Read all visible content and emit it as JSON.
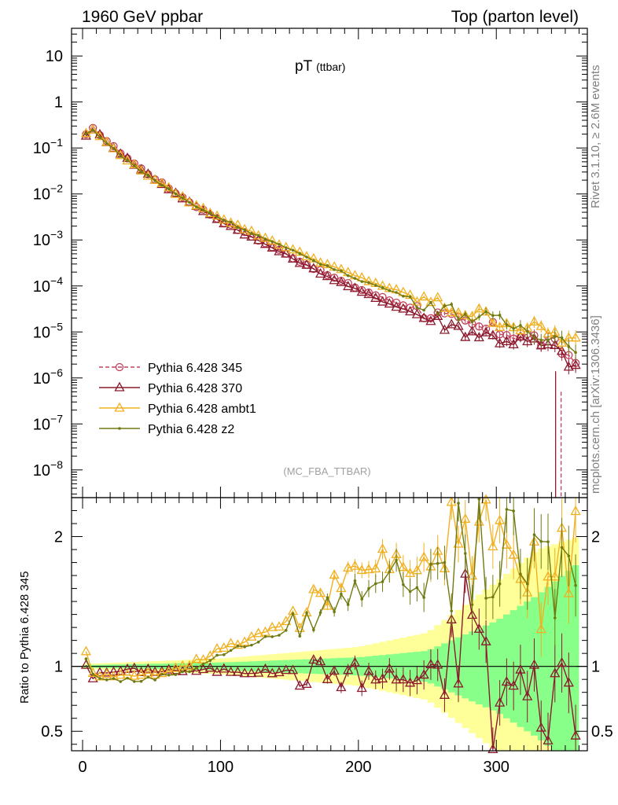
{
  "header": {
    "left": "1960 GeV ppbar",
    "right": "Top (parton level)"
  },
  "side": {
    "rivet": "Rivet 3.1.10, ≥ 2.6M events",
    "mcplots": "mcplots.cern.ch [arXiv:1306.3436]"
  },
  "chart_data": [
    {
      "type": "line",
      "title": "pT",
      "title_sub": "(ttbar)",
      "analysis_label": "(MC_FBA_TTBAR)",
      "y_scale": "log",
      "xlim": [
        -8,
        366
      ],
      "ylim": [
        2.5e-09,
        40
      ],
      "y_tick_labels": [
        {
          "v": 10,
          "text": "10"
        },
        {
          "v": 1,
          "text": "1"
        },
        {
          "v": 0.1,
          "base": "10",
          "exp": "−1"
        },
        {
          "v": 0.01,
          "base": "10",
          "exp": "−2"
        },
        {
          "v": 0.001,
          "base": "10",
          "exp": "−3"
        },
        {
          "v": 0.0001,
          "base": "10",
          "exp": "−4"
        },
        {
          "v": 1e-05,
          "base": "10",
          "exp": "−5"
        },
        {
          "v": 1e-06,
          "base": "10",
          "exp": "−6"
        },
        {
          "v": 1e-07,
          "base": "10",
          "exp": "−7"
        },
        {
          "v": 1e-08,
          "base": "10",
          "exp": "−8"
        }
      ],
      "legend_position": "bottom-left",
      "bin_width": 5,
      "x_start": 2.5,
      "series": [
        {
          "name": "Pythia 6.428 345",
          "color": "#c0405a",
          "marker": "circle",
          "line": "dashed",
          "control_points": [
            [
              2.5,
              0.19
            ],
            [
              7.5,
              0.26
            ],
            [
              12.5,
              0.2
            ],
            [
              20,
              0.12
            ],
            [
              40,
              0.04
            ],
            [
              60,
              0.015
            ],
            [
              80,
              0.006
            ],
            [
              100,
              0.0027
            ],
            [
              120,
              0.0013
            ],
            [
              140,
              0.00065
            ],
            [
              160,
              0.00032
            ],
            [
              180,
              0.00016
            ],
            [
              200,
              8.8e-05
            ],
            [
              220,
              5.2e-05
            ],
            [
              240,
              3.3e-05
            ],
            [
              260,
              2.1e-05
            ],
            [
              280,
              1.3e-05
            ],
            [
              300,
              1.1e-05
            ],
            [
              320,
              8.5e-06
            ],
            [
              340,
              5.5e-06
            ],
            [
              350,
              3.5e-06
            ],
            [
              360,
              2e-06
            ]
          ]
        },
        {
          "name": "Pythia 6.428 370",
          "color": "#8b1a2e",
          "marker": "triangle",
          "line": "solid",
          "control_points": [
            [
              2.5,
              0.19
            ],
            [
              7.5,
              0.24
            ],
            [
              12.5,
              0.19
            ],
            [
              20,
              0.118
            ],
            [
              40,
              0.038
            ],
            [
              60,
              0.0145
            ],
            [
              80,
              0.0058
            ],
            [
              100,
              0.0026
            ],
            [
              120,
              0.00125
            ],
            [
              140,
              0.00062
            ],
            [
              160,
              0.0003
            ],
            [
              180,
              0.000148
            ],
            [
              200,
              7.8e-05
            ],
            [
              220,
              4.4e-05
            ],
            [
              240,
              2.6e-05
            ],
            [
              260,
              1.6e-05
            ],
            [
              280,
              1.05e-05
            ],
            [
              300,
              7.5e-06
            ],
            [
              320,
              6.2e-06
            ],
            [
              340,
              4.5e-06
            ],
            [
              350,
              2.8e-06
            ],
            [
              360,
              1.5e-06
            ]
          ]
        },
        {
          "name": "Pythia 6.428 ambt1",
          "color": "#f0b020",
          "marker": "triangle",
          "line": "solid",
          "control_points": [
            [
              2.5,
              0.21
            ],
            [
              7.5,
              0.24
            ],
            [
              12.5,
              0.18
            ],
            [
              20,
              0.11
            ],
            [
              40,
              0.036
            ],
            [
              60,
              0.0145
            ],
            [
              80,
              0.006
            ],
            [
              100,
              0.0031
            ],
            [
              120,
              0.0016
            ],
            [
              140,
              0.00088
            ],
            [
              160,
              0.00048
            ],
            [
              180,
              0.00027
            ],
            [
              200,
              0.000155
            ],
            [
              220,
              9.5e-05
            ],
            [
              240,
              5.8e-05
            ],
            [
              260,
              3.8e-05
            ],
            [
              280,
              2.6e-05
            ],
            [
              300,
              1.9e-05
            ],
            [
              320,
              1.3e-05
            ],
            [
              340,
              9.5e-06
            ],
            [
              350,
              7e-06
            ],
            [
              360,
              5.5e-06
            ]
          ]
        },
        {
          "name": "Pythia 6.428 z2",
          "color": "#707a10",
          "marker": "dot",
          "line": "solid",
          "control_points": [
            [
              2.5,
              0.2
            ],
            [
              7.5,
              0.24
            ],
            [
              12.5,
              0.18
            ],
            [
              20,
              0.108
            ],
            [
              40,
              0.035
            ],
            [
              60,
              0.014
            ],
            [
              80,
              0.0058
            ],
            [
              100,
              0.003
            ],
            [
              120,
              0.00155
            ],
            [
              140,
              0.00084
            ],
            [
              160,
              0.00045
            ],
            [
              180,
              0.00025
            ],
            [
              200,
              0.00014
            ],
            [
              220,
              8.5e-05
            ],
            [
              240,
              5.2e-05
            ],
            [
              260,
              3.4e-05
            ],
            [
              280,
              2.3e-05
            ],
            [
              300,
              1.7e-05
            ],
            [
              320,
              1.2e-05
            ],
            [
              340,
              8.5e-06
            ],
            [
              350,
              6.5e-06
            ],
            [
              360,
              5e-06
            ]
          ]
        }
      ]
    },
    {
      "type": "line",
      "ylabel": "Ratio to Pythia 6.428 345",
      "xlim": [
        -8,
        366
      ],
      "ylim": [
        0.35,
        2.3
      ],
      "x_ticks": [
        0,
        100,
        200,
        300
      ],
      "y_ticks": [
        0.5,
        1,
        2
      ],
      "reference": 1,
      "band_inner": [
        [
          2.5,
          0.01
        ],
        [
          100,
          0.03
        ],
        [
          200,
          0.07
        ],
        [
          250,
          0.12
        ],
        [
          300,
          0.35
        ],
        [
          330,
          0.55
        ],
        [
          360,
          0.8
        ]
      ],
      "band_outer": [
        [
          2.5,
          0.02
        ],
        [
          100,
          0.06
        ],
        [
          200,
          0.15
        ],
        [
          250,
          0.26
        ],
        [
          300,
          0.65
        ],
        [
          330,
          0.9
        ],
        [
          360,
          1.0
        ]
      ],
      "series": [
        {
          "name": "Pythia 6.428 370",
          "color": "#8b1a2e",
          "control_points": [
            [
              2.5,
              1.02
            ],
            [
              7.5,
              0.92
            ],
            [
              20,
              0.96
            ],
            [
              40,
              0.97
            ],
            [
              60,
              0.97
            ],
            [
              80,
              0.97
            ],
            [
              100,
              0.97
            ],
            [
              120,
              0.96
            ],
            [
              140,
              0.96
            ],
            [
              160,
              0.95
            ],
            [
              180,
              0.96
            ],
            [
              200,
              0.93
            ],
            [
              220,
              0.92
            ],
            [
              240,
              0.9
            ],
            [
              260,
              0.93
            ],
            [
              270,
              1.2
            ],
            [
              280,
              1.45
            ],
            [
              285,
              1.6
            ],
            [
              290,
              1.0
            ],
            [
              300,
              0.6
            ],
            [
              310,
              0.9
            ],
            [
              320,
              0.8
            ],
            [
              330,
              0.7
            ],
            [
              340,
              0.9
            ],
            [
              350,
              0.8
            ],
            [
              360,
              0.75
            ]
          ]
        },
        {
          "name": "Pythia 6.428 ambt1",
          "color": "#f0b020",
          "control_points": [
            [
              2.5,
              1.12
            ],
            [
              7.5,
              0.95
            ],
            [
              20,
              0.92
            ],
            [
              40,
              0.92
            ],
            [
              60,
              0.97
            ],
            [
              80,
              1.03
            ],
            [
              100,
              1.13
            ],
            [
              120,
              1.21
            ],
            [
              140,
              1.3
            ],
            [
              160,
              1.4
            ],
            [
              180,
              1.6
            ],
            [
              200,
              1.7
            ],
            [
              220,
              1.85
            ],
            [
              240,
              1.75
            ],
            [
              260,
              1.8
            ],
            [
              280,
              2.0
            ],
            [
              300,
              1.75
            ],
            [
              320,
              1.6
            ],
            [
              340,
              1.8
            ],
            [
              360,
              2.0
            ]
          ]
        },
        {
          "name": "Pythia 6.428 z2",
          "color": "#707a10",
          "control_points": [
            [
              2.5,
              1.06
            ],
            [
              7.5,
              0.93
            ],
            [
              20,
              0.9
            ],
            [
              40,
              0.89
            ],
            [
              60,
              0.93
            ],
            [
              80,
              0.98
            ],
            [
              100,
              1.09
            ],
            [
              120,
              1.17
            ],
            [
              140,
              1.24
            ],
            [
              160,
              1.33
            ],
            [
              180,
              1.47
            ],
            [
              200,
              1.6
            ],
            [
              220,
              1.75
            ],
            [
              240,
              1.62
            ],
            [
              260,
              1.7
            ],
            [
              280,
              1.9
            ],
            [
              300,
              1.8
            ],
            [
              320,
              1.75
            ],
            [
              340,
              1.7
            ],
            [
              360,
              1.8
            ]
          ]
        }
      ]
    }
  ]
}
